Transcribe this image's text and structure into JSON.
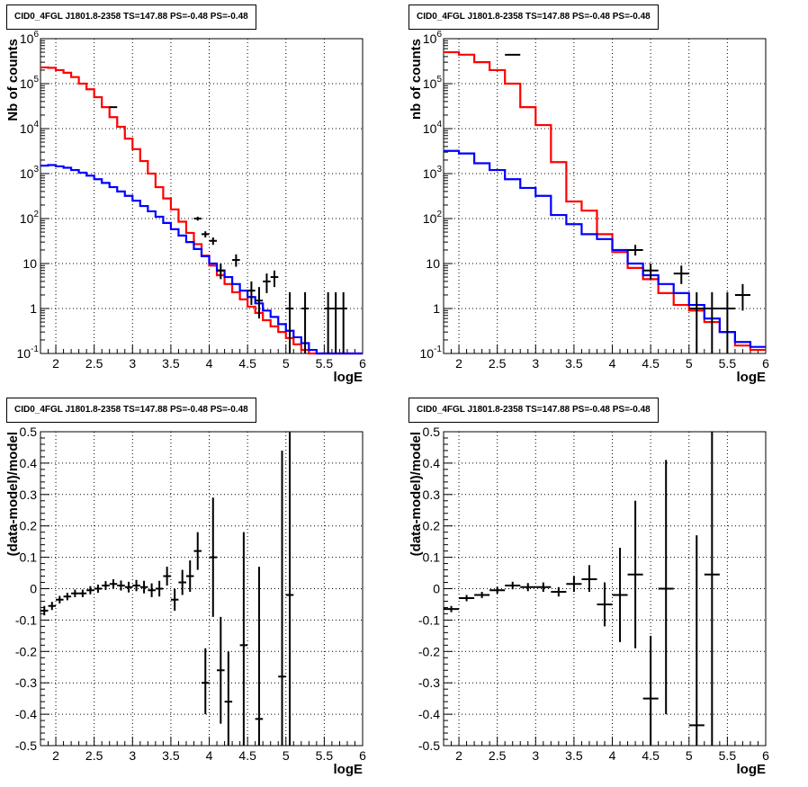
{
  "chart_data": [
    {
      "type": "line",
      "title": "CID0_4FGL J1801.8-2358 TS=147.88 PS=-0.48 PS=-0.48",
      "xlabel": "logE",
      "ylabel": "Nb of counts",
      "log_y": true,
      "xlim": [
        1.8,
        6.0
      ],
      "ylim": [
        0.1,
        1000000
      ],
      "grid": true,
      "x_ticks": [
        "2",
        "2.5",
        "3",
        "3.5",
        "4",
        "4.5",
        "5",
        "5.5",
        "6"
      ],
      "y_ticks": [
        "10^-1",
        "1",
        "10",
        "10^2",
        "10^3",
        "10^4",
        "10^5",
        "10^6"
      ],
      "bin_edges": [
        1.8,
        1.9,
        2.0,
        2.1,
        2.2,
        2.3,
        2.4,
        2.5,
        2.6,
        2.7,
        2.8,
        2.9,
        3.0,
        3.1,
        3.2,
        3.3,
        3.4,
        3.5,
        3.6,
        3.7,
        3.8,
        3.9,
        4.0,
        4.1,
        4.2,
        4.3,
        4.4,
        4.5,
        4.6,
        4.7,
        4.8,
        4.9,
        5.0,
        5.1,
        5.2,
        5.3,
        5.4,
        5.5,
        5.6,
        5.7,
        5.8,
        5.9,
        6.0
      ],
      "series": [
        {
          "color": "#ff0000",
          "values": [
            230000,
            225000,
            200000,
            175000,
            140000,
            100000,
            75000,
            50000,
            30000,
            18000,
            11000,
            6000,
            3500,
            1900,
            1000,
            500,
            280,
            160,
            85,
            48,
            27,
            15,
            9,
            5.5,
            3.5,
            2.3,
            1.6,
            1.1,
            0.8,
            0.55,
            0.4,
            0.3,
            0.22,
            0.16,
            0.12,
            0.1,
            0.1,
            0.1,
            0.1,
            0.1,
            0.1,
            0.1
          ]
        },
        {
          "color": "#0000ff",
          "values": [
            1500,
            1550,
            1450,
            1350,
            1200,
            1050,
            900,
            750,
            620,
            500,
            400,
            320,
            250,
            190,
            145,
            110,
            80,
            58,
            42,
            30,
            21,
            14.5,
            10,
            7,
            5,
            3.5,
            2.5,
            1.8,
            1.3,
            0.9,
            0.65,
            0.45,
            0.32,
            0.23,
            0.17,
            0.12,
            0.1,
            0.1,
            0.1,
            0.1,
            0.1,
            0.1
          ]
        }
      ],
      "points": [
        {
          "x": 2.75,
          "y": 30000,
          "xerr": 0.05,
          "ylo": 29500,
          "yhi": 30500
        },
        {
          "x": 3.85,
          "y": 100,
          "xerr": 0.05,
          "ylo": 90,
          "yhi": 110
        },
        {
          "x": 3.95,
          "y": 45,
          "xerr": 0.05,
          "ylo": 38,
          "yhi": 52
        },
        {
          "x": 4.05,
          "y": 32,
          "xerr": 0.05,
          "ylo": 26,
          "yhi": 38
        },
        {
          "x": 4.15,
          "y": 7,
          "xerr": 0.05,
          "ylo": 4.5,
          "yhi": 10
        },
        {
          "x": 4.35,
          "y": 12,
          "xerr": 0.05,
          "ylo": 8.5,
          "yhi": 16
        },
        {
          "x": 4.55,
          "y": 2.5,
          "xerr": 0.05,
          "ylo": 1.2,
          "yhi": 4
        },
        {
          "x": 4.65,
          "y": 1.5,
          "xerr": 0.05,
          "ylo": 0.6,
          "yhi": 3
        },
        {
          "x": 4.75,
          "y": 4,
          "xerr": 0.05,
          "ylo": 2.2,
          "yhi": 6
        },
        {
          "x": 4.85,
          "y": 5,
          "xerr": 0.05,
          "ylo": 3,
          "yhi": 7
        },
        {
          "x": 5.05,
          "y": 1,
          "xerr": 0.05,
          "ylo": 0.1,
          "yhi": 2.3
        },
        {
          "x": 5.25,
          "y": 1,
          "xerr": 0.05,
          "ylo": 0.1,
          "yhi": 2.3
        },
        {
          "x": 5.55,
          "y": 1,
          "xerr": 0.05,
          "ylo": 0.1,
          "yhi": 2.3
        },
        {
          "x": 5.65,
          "y": 1,
          "xerr": 0.05,
          "ylo": 0.1,
          "yhi": 2.3
        },
        {
          "x": 5.75,
          "y": 1,
          "xerr": 0.05,
          "ylo": 0.1,
          "yhi": 2.3
        }
      ]
    },
    {
      "type": "line",
      "title": "CID0_4FGL J1801.8-2358 TS=147.88 PS=-0.48 PS=-0.48",
      "xlabel": "logE",
      "ylabel": "nb of counts",
      "log_y": true,
      "xlim": [
        1.8,
        6.0
      ],
      "ylim": [
        0.1,
        1000000
      ],
      "grid": true,
      "x_ticks": [
        "2",
        "2.5",
        "3",
        "3.5",
        "4",
        "4.5",
        "5",
        "5.5",
        "6"
      ],
      "y_ticks": [
        "10^-1",
        "1",
        "10",
        "10^2",
        "10^3",
        "10^4",
        "10^5",
        "10^6"
      ],
      "bin_edges": [
        1.8,
        2.0,
        2.2,
        2.4,
        2.6,
        2.8,
        3.0,
        3.2,
        3.4,
        3.6,
        3.8,
        4.0,
        4.2,
        4.4,
        4.6,
        4.8,
        5.0,
        5.2,
        5.4,
        5.6,
        5.8,
        6.0
      ],
      "series": [
        {
          "color": "#ff0000",
          "values": [
            500000,
            440000,
            300000,
            200000,
            100000,
            30000,
            12000,
            1800,
            240,
            150,
            45,
            18,
            8,
            4.5,
            2.2,
            1.2,
            0.9,
            0.5,
            0.3,
            0.15,
            0.12
          ]
        },
        {
          "color": "#0000ff",
          "values": [
            3200,
            2800,
            1700,
            1200,
            750,
            480,
            320,
            120,
            75,
            45,
            35,
            20,
            10,
            5.5,
            3.5,
            2.2,
            1.2,
            0.6,
            0.3,
            0.18,
            0.14
          ]
        }
      ],
      "points": [
        {
          "x": 2.7,
          "y": 440000,
          "xerr": 0.1,
          "ylo": 430000,
          "yhi": 450000
        },
        {
          "x": 4.3,
          "y": 20,
          "xerr": 0.1,
          "ylo": 15,
          "yhi": 26
        },
        {
          "x": 4.5,
          "y": 7,
          "xerr": 0.1,
          "ylo": 4.5,
          "yhi": 10
        },
        {
          "x": 4.9,
          "y": 6,
          "xerr": 0.1,
          "ylo": 3.5,
          "yhi": 9
        },
        {
          "x": 5.1,
          "y": 1,
          "xerr": 0.1,
          "ylo": 0.1,
          "yhi": 2.3
        },
        {
          "x": 5.3,
          "y": 1,
          "xerr": 0.1,
          "ylo": 0.1,
          "yhi": 2.3
        },
        {
          "x": 5.5,
          "y": 1,
          "xerr": 0.1,
          "ylo": 0.1,
          "yhi": 2.3
        },
        {
          "x": 5.7,
          "y": 2,
          "xerr": 0.1,
          "ylo": 0.9,
          "yhi": 3.5
        }
      ]
    },
    {
      "type": "scatter",
      "title": "CID0_4FGL J1801.8-2358 TS=147.88 PS=-0.48 PS=-0.48",
      "xlabel": "logE",
      "ylabel": "(data-model)/model",
      "xlim": [
        1.8,
        6.0
      ],
      "ylim": [
        -0.5,
        0.5
      ],
      "grid": true,
      "x_ticks": [
        "2",
        "2.5",
        "3",
        "3.5",
        "4",
        "4.5",
        "5",
        "5.5",
        "6"
      ],
      "y_ticks": [
        "-0.5",
        "-0.4",
        "-0.3",
        "-0.2",
        "-0.1",
        "0",
        "0.1",
        "0.2",
        "0.3",
        "0.4",
        "0.5"
      ],
      "points": [
        {
          "x": 1.85,
          "y": -0.07,
          "xerr": 0.05,
          "ylo": -0.085,
          "yhi": -0.055
        },
        {
          "x": 1.95,
          "y": -0.055,
          "xerr": 0.05,
          "ylo": -0.068,
          "yhi": -0.042
        },
        {
          "x": 2.05,
          "y": -0.035,
          "xerr": 0.05,
          "ylo": -0.047,
          "yhi": -0.023
        },
        {
          "x": 2.15,
          "y": -0.025,
          "xerr": 0.05,
          "ylo": -0.037,
          "yhi": -0.013
        },
        {
          "x": 2.25,
          "y": -0.015,
          "xerr": 0.05,
          "ylo": -0.027,
          "yhi": -0.003
        },
        {
          "x": 2.35,
          "y": -0.015,
          "xerr": 0.05,
          "ylo": -0.027,
          "yhi": -0.003
        },
        {
          "x": 2.45,
          "y": -0.005,
          "xerr": 0.05,
          "ylo": -0.018,
          "yhi": 0.008
        },
        {
          "x": 2.55,
          "y": 0.0,
          "xerr": 0.05,
          "ylo": -0.013,
          "yhi": 0.013
        },
        {
          "x": 2.65,
          "y": 0.01,
          "xerr": 0.05,
          "ylo": -0.004,
          "yhi": 0.024
        },
        {
          "x": 2.75,
          "y": 0.015,
          "xerr": 0.05,
          "ylo": 0.0,
          "yhi": 0.03
        },
        {
          "x": 2.85,
          "y": 0.01,
          "xerr": 0.05,
          "ylo": -0.006,
          "yhi": 0.026
        },
        {
          "x": 2.95,
          "y": 0.005,
          "xerr": 0.05,
          "ylo": -0.012,
          "yhi": 0.022
        },
        {
          "x": 3.05,
          "y": 0.01,
          "xerr": 0.05,
          "ylo": -0.008,
          "yhi": 0.028
        },
        {
          "x": 3.15,
          "y": 0.005,
          "xerr": 0.05,
          "ylo": -0.015,
          "yhi": 0.025
        },
        {
          "x": 3.25,
          "y": -0.005,
          "xerr": 0.05,
          "ylo": -0.027,
          "yhi": 0.017
        },
        {
          "x": 3.35,
          "y": 0.0,
          "xerr": 0.05,
          "ylo": -0.025,
          "yhi": 0.025
        },
        {
          "x": 3.45,
          "y": 0.04,
          "xerr": 0.05,
          "ylo": 0.01,
          "yhi": 0.07
        },
        {
          "x": 3.55,
          "y": -0.035,
          "xerr": 0.05,
          "ylo": -0.07,
          "yhi": 0.0
        },
        {
          "x": 3.65,
          "y": 0.02,
          "xerr": 0.05,
          "ylo": -0.02,
          "yhi": 0.06
        },
        {
          "x": 3.75,
          "y": 0.04,
          "xerr": 0.05,
          "ylo": -0.01,
          "yhi": 0.09
        },
        {
          "x": 3.85,
          "y": 0.12,
          "xerr": 0.05,
          "ylo": 0.06,
          "yhi": 0.18
        },
        {
          "x": 3.95,
          "y": -0.3,
          "xerr": 0.05,
          "ylo": -0.4,
          "yhi": -0.19
        },
        {
          "x": 4.05,
          "y": 0.1,
          "xerr": 0.05,
          "ylo": -0.09,
          "yhi": 0.29
        },
        {
          "x": 4.15,
          "y": -0.26,
          "xerr": 0.05,
          "ylo": -0.43,
          "yhi": -0.09
        },
        {
          "x": 4.25,
          "y": -0.36,
          "xerr": 0.05,
          "ylo": -0.5,
          "yhi": -0.2
        },
        {
          "x": 4.45,
          "y": -0.18,
          "xerr": 0.05,
          "ylo": -0.5,
          "yhi": 0.18
        },
        {
          "x": 4.65,
          "y": -0.415,
          "xerr": 0.05,
          "ylo": -0.5,
          "yhi": 0.07
        },
        {
          "x": 4.95,
          "y": -0.28,
          "xerr": 0.05,
          "ylo": -0.5,
          "yhi": 0.44
        },
        {
          "x": 5.05,
          "y": -0.02,
          "xerr": 0.05,
          "ylo": -0.5,
          "yhi": 0.5
        }
      ]
    },
    {
      "type": "scatter",
      "title": "CID0_4FGL J1801.8-2358 TS=147.88 PS=-0.48 PS=-0.48",
      "xlabel": "logE",
      "ylabel": "(data-model)/model",
      "xlim": [
        1.8,
        6.0
      ],
      "ylim": [
        -0.5,
        0.5
      ],
      "grid": true,
      "x_ticks": [
        "2",
        "2.5",
        "3",
        "3.5",
        "4",
        "4.5",
        "5",
        "5.5",
        "6"
      ],
      "y_ticks": [
        "-0.5",
        "-0.4",
        "-0.3",
        "-0.2",
        "-0.1",
        "0",
        "0.1",
        "0.2",
        "0.3",
        "0.4",
        "0.5"
      ],
      "points": [
        {
          "x": 1.9,
          "y": -0.065,
          "xerr": 0.1,
          "ylo": -0.075,
          "yhi": -0.055
        },
        {
          "x": 2.1,
          "y": -0.03,
          "xerr": 0.1,
          "ylo": -0.04,
          "yhi": -0.02
        },
        {
          "x": 2.3,
          "y": -0.02,
          "xerr": 0.1,
          "ylo": -0.03,
          "yhi": -0.01
        },
        {
          "x": 2.5,
          "y": -0.005,
          "xerr": 0.1,
          "ylo": -0.016,
          "yhi": 0.006
        },
        {
          "x": 2.7,
          "y": 0.01,
          "xerr": 0.1,
          "ylo": -0.002,
          "yhi": 0.022
        },
        {
          "x": 2.9,
          "y": 0.005,
          "xerr": 0.1,
          "ylo": -0.008,
          "yhi": 0.018
        },
        {
          "x": 3.1,
          "y": 0.005,
          "xerr": 0.1,
          "ylo": -0.01,
          "yhi": 0.02
        },
        {
          "x": 3.3,
          "y": -0.01,
          "xerr": 0.1,
          "ylo": -0.025,
          "yhi": 0.005
        },
        {
          "x": 3.5,
          "y": 0.015,
          "xerr": 0.1,
          "ylo": -0.01,
          "yhi": 0.04
        },
        {
          "x": 3.7,
          "y": 0.03,
          "xerr": 0.1,
          "ylo": -0.01,
          "yhi": 0.075
        },
        {
          "x": 3.9,
          "y": -0.05,
          "xerr": 0.1,
          "ylo": -0.12,
          "yhi": 0.02
        },
        {
          "x": 4.1,
          "y": -0.02,
          "xerr": 0.1,
          "ylo": -0.17,
          "yhi": 0.13
        },
        {
          "x": 4.3,
          "y": 0.045,
          "xerr": 0.1,
          "ylo": -0.19,
          "yhi": 0.28
        },
        {
          "x": 4.5,
          "y": -0.35,
          "xerr": 0.1,
          "ylo": -0.5,
          "yhi": -0.15
        },
        {
          "x": 4.7,
          "y": 0.0,
          "xerr": 0.1,
          "ylo": -0.4,
          "yhi": 0.41
        },
        {
          "x": 5.1,
          "y": -0.435,
          "xerr": 0.1,
          "ylo": -0.5,
          "yhi": 0.17
        },
        {
          "x": 5.3,
          "y": 0.045,
          "xerr": 0.1,
          "ylo": -0.5,
          "yhi": 0.5
        }
      ]
    }
  ]
}
